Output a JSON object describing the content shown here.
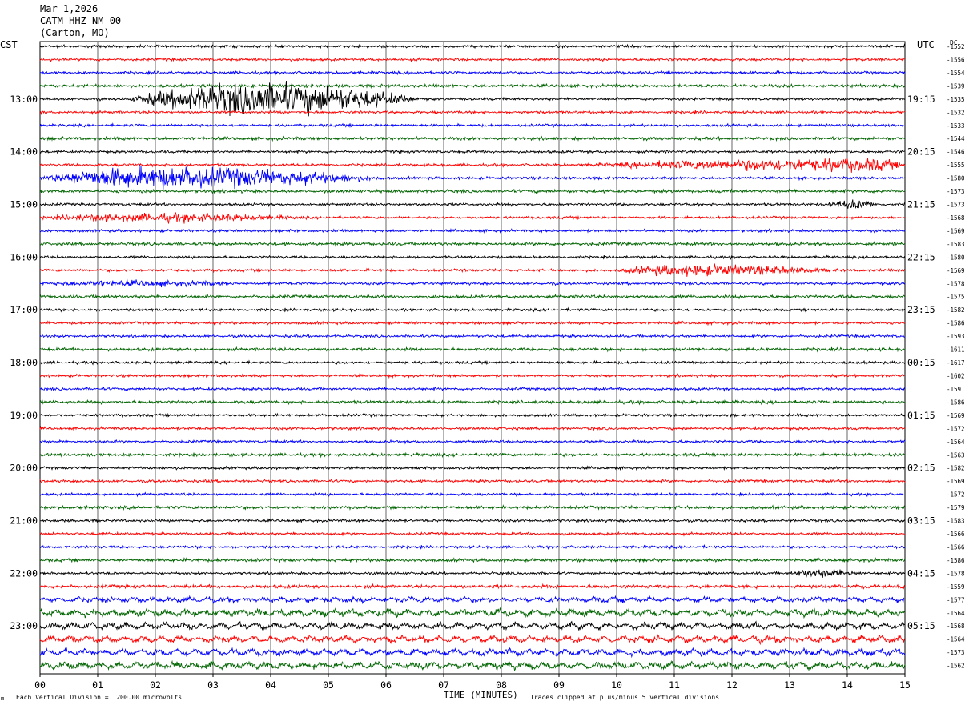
{
  "header": {
    "date": "Mar 1,2026",
    "station": "CATM HHZ NM 00",
    "location": "(Carton, MO)"
  },
  "labels": {
    "left_timezone": "CST",
    "right_timezone": "UTC",
    "dc_label": "DC",
    "x_axis_title": "TIME (MINUTES)",
    "scale_note": "Each Vertical Division =  200.00 microvolts",
    "clip_note": "Traces clipped at plus/minus 5 vertical divisions",
    "corner_mark": "m"
  },
  "colors": {
    "trace_cycle": [
      "#000000",
      "#ff0000",
      "#0000ff",
      "#006400"
    ],
    "grid": "#000000",
    "background": "#ffffff"
  },
  "chart_data": {
    "type": "line",
    "title": "CATM HHZ NM 00 (Carton, MO) Mar 1,2026",
    "xlabel": "TIME (MINUTES)",
    "ylabel": "",
    "xlim": [
      0,
      15
    ],
    "x_ticks": [
      "00",
      "01",
      "02",
      "03",
      "04",
      "05",
      "06",
      "07",
      "08",
      "09",
      "10",
      "11",
      "12",
      "13",
      "14",
      "15"
    ],
    "trace_count": 48,
    "left_hour_labels": [
      "13:00",
      "14:00",
      "15:00",
      "16:00",
      "17:00",
      "18:00",
      "19:00",
      "20:00",
      "21:00",
      "22:00",
      "23:00"
    ],
    "right_hour_labels": [
      "19:15",
      "20:15",
      "21:15",
      "22:15",
      "23:15",
      "00:15",
      "01:15",
      "02:15",
      "03:15",
      "04:15",
      "05:15"
    ],
    "hour_label_first_trace": 4,
    "traces_per_hour": 4,
    "dc_offsets": [
      -1552,
      -1556,
      -1554,
      -1539,
      -1535,
      -1532,
      -1533,
      -1544,
      -1546,
      -1555,
      -1580,
      -1573,
      -1573,
      -1568,
      -1569,
      -1583,
      -1580,
      -1569,
      -1578,
      -1575,
      -1582,
      -1586,
      -1593,
      -1611,
      -1617,
      -1602,
      -1591,
      -1586,
      -1569,
      -1572,
      -1564,
      -1563,
      -1582,
      -1569,
      -1572,
      -1579,
      -1583,
      -1566,
      -1566,
      -1586,
      -1578,
      -1559,
      -1577,
      -1564,
      -1568,
      -1564,
      -1573,
      -1562
    ],
    "events": [
      {
        "trace": 4,
        "start_min": 1.5,
        "end_min": 6.6,
        "peak_min": 3.8,
        "peak_amp": 3.2
      },
      {
        "trace": 10,
        "start_min": 0.0,
        "end_min": 6.0,
        "peak_min": 1.8,
        "peak_amp": 2.1
      },
      {
        "trace": 9,
        "start_min": 9.5,
        "end_min": 15.0,
        "peak_min": 14.3,
        "peak_amp": 1.2
      },
      {
        "trace": 13,
        "start_min": 0.0,
        "end_min": 4.5,
        "peak_min": 2.0,
        "peak_amp": 0.7
      },
      {
        "trace": 17,
        "start_min": 10.0,
        "end_min": 13.8,
        "peak_min": 11.3,
        "peak_amp": 1.0
      },
      {
        "trace": 18,
        "start_min": 0.0,
        "end_min": 3.5,
        "peak_min": 1.5,
        "peak_amp": 0.4
      },
      {
        "trace": 40,
        "start_min": 13.0,
        "end_min": 14.3,
        "peak_min": 13.5,
        "peak_amp": 0.7
      },
      {
        "trace": 12,
        "start_min": 13.6,
        "end_min": 14.5,
        "peak_min": 14.2,
        "peak_amp": 0.8
      }
    ],
    "microseism": {
      "first_trace": 41,
      "onset_trace": 43,
      "period_min": 0.32,
      "peak_amp": 1.0
    }
  }
}
